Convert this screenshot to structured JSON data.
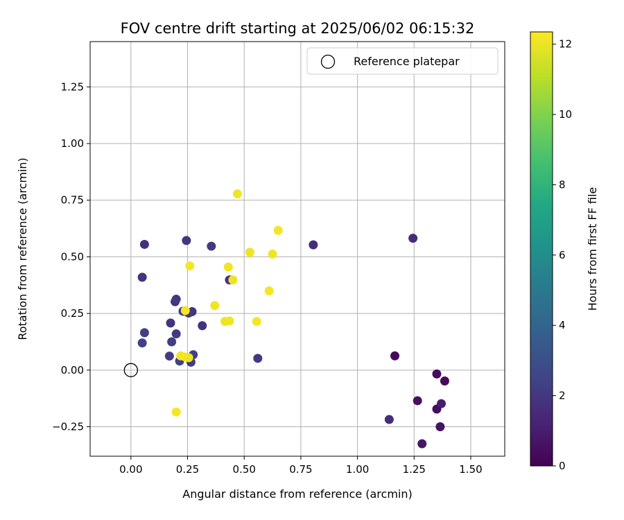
{
  "chart_data": {
    "type": "scatter",
    "title": "FOV centre drift starting at 2025/06/02 06:15:32",
    "xlabel": "Angular distance from reference (arcmin)",
    "ylabel": "Rotation from reference (arcmin)",
    "xlim": [
      -0.18,
      1.65
    ],
    "ylim": [
      -0.38,
      1.45
    ],
    "grid": true,
    "xticks": [
      0.0,
      0.25,
      0.5,
      0.75,
      1.0,
      1.25,
      1.5
    ],
    "xtick_labels": [
      "0.00",
      "0.25",
      "0.50",
      "0.75",
      "1.00",
      "1.25",
      "1.50"
    ],
    "yticks": [
      -0.25,
      0.0,
      0.25,
      0.5,
      0.75,
      1.0,
      1.25
    ],
    "yticks_labels": [
      "−0.25",
      "0.00",
      "0.25",
      "0.50",
      "0.75",
      "1.00",
      "1.25"
    ],
    "legend": {
      "position": "top-right",
      "label": "Reference platepar"
    },
    "reference": {
      "x": 0.0,
      "y": 0.0
    },
    "colorbar": {
      "label": "Hours from first FF file",
      "colormap": "viridis",
      "range": [
        0,
        12.35
      ],
      "ticks": [
        0,
        2,
        4,
        6,
        8,
        10,
        12
      ],
      "tick_labels": [
        "0",
        "2",
        "4",
        "6",
        "8",
        "10",
        "12"
      ]
    },
    "points": [
      {
        "x": 1.165,
        "y": 0.063,
        "c": 0.3
      },
      {
        "x": 1.35,
        "y": -0.017,
        "c": 0.4
      },
      {
        "x": 1.385,
        "y": -0.048,
        "c": 0.3
      },
      {
        "x": 1.265,
        "y": -0.135,
        "c": 0.5
      },
      {
        "x": 1.35,
        "y": -0.172,
        "c": 0.4
      },
      {
        "x": 1.37,
        "y": -0.148,
        "c": 1.0
      },
      {
        "x": 1.365,
        "y": -0.25,
        "c": 0.6
      },
      {
        "x": 1.285,
        "y": -0.325,
        "c": 0.8
      },
      {
        "x": 1.14,
        "y": -0.218,
        "c": 1.6
      },
      {
        "x": 1.245,
        "y": 0.582,
        "c": 1.6
      },
      {
        "x": 0.805,
        "y": 0.553,
        "c": 1.6
      },
      {
        "x": 0.06,
        "y": 0.555,
        "c": 1.7
      },
      {
        "x": 0.05,
        "y": 0.41,
        "c": 1.8
      },
      {
        "x": 0.245,
        "y": 0.572,
        "c": 1.9
      },
      {
        "x": 0.355,
        "y": 0.547,
        "c": 2.0
      },
      {
        "x": 0.435,
        "y": 0.398,
        "c": 1.7
      },
      {
        "x": 0.195,
        "y": 0.302,
        "c": 1.8
      },
      {
        "x": 0.2,
        "y": 0.313,
        "c": 2.0
      },
      {
        "x": 0.23,
        "y": 0.26,
        "c": 1.9
      },
      {
        "x": 0.27,
        "y": 0.258,
        "c": 1.8
      },
      {
        "x": 0.255,
        "y": 0.252,
        "c": 2.0
      },
      {
        "x": 0.315,
        "y": 0.196,
        "c": 1.8
      },
      {
        "x": 0.175,
        "y": 0.208,
        "c": 1.9
      },
      {
        "x": 0.2,
        "y": 0.16,
        "c": 2.1
      },
      {
        "x": 0.06,
        "y": 0.165,
        "c": 2.2
      },
      {
        "x": 0.05,
        "y": 0.12,
        "c": 2.3
      },
      {
        "x": 0.18,
        "y": 0.125,
        "c": 2.2
      },
      {
        "x": 0.17,
        "y": 0.062,
        "c": 2.2
      },
      {
        "x": 0.215,
        "y": 0.04,
        "c": 2.3
      },
      {
        "x": 0.265,
        "y": 0.035,
        "c": 2.2
      },
      {
        "x": 0.275,
        "y": 0.068,
        "c": 2.3
      },
      {
        "x": 0.56,
        "y": 0.052,
        "c": 2.0
      },
      {
        "x": 0.47,
        "y": 0.778,
        "c": 12.1
      },
      {
        "x": 0.65,
        "y": 0.617,
        "c": 12.2
      },
      {
        "x": 0.525,
        "y": 0.52,
        "c": 12.0
      },
      {
        "x": 0.625,
        "y": 0.512,
        "c": 12.1
      },
      {
        "x": 0.26,
        "y": 0.46,
        "c": 12.2
      },
      {
        "x": 0.43,
        "y": 0.455,
        "c": 12.1
      },
      {
        "x": 0.45,
        "y": 0.398,
        "c": 12.0
      },
      {
        "x": 0.61,
        "y": 0.35,
        "c": 12.2
      },
      {
        "x": 0.37,
        "y": 0.285,
        "c": 12.1
      },
      {
        "x": 0.24,
        "y": 0.263,
        "c": 12.2
      },
      {
        "x": 0.415,
        "y": 0.215,
        "c": 12.0
      },
      {
        "x": 0.435,
        "y": 0.217,
        "c": 12.1
      },
      {
        "x": 0.555,
        "y": 0.215,
        "c": 12.2
      },
      {
        "x": 0.22,
        "y": 0.063,
        "c": 12.1
      },
      {
        "x": 0.24,
        "y": 0.058,
        "c": 12.2
      },
      {
        "x": 0.255,
        "y": 0.055,
        "c": 12.0
      },
      {
        "x": 0.2,
        "y": -0.185,
        "c": 12.2
      }
    ]
  }
}
